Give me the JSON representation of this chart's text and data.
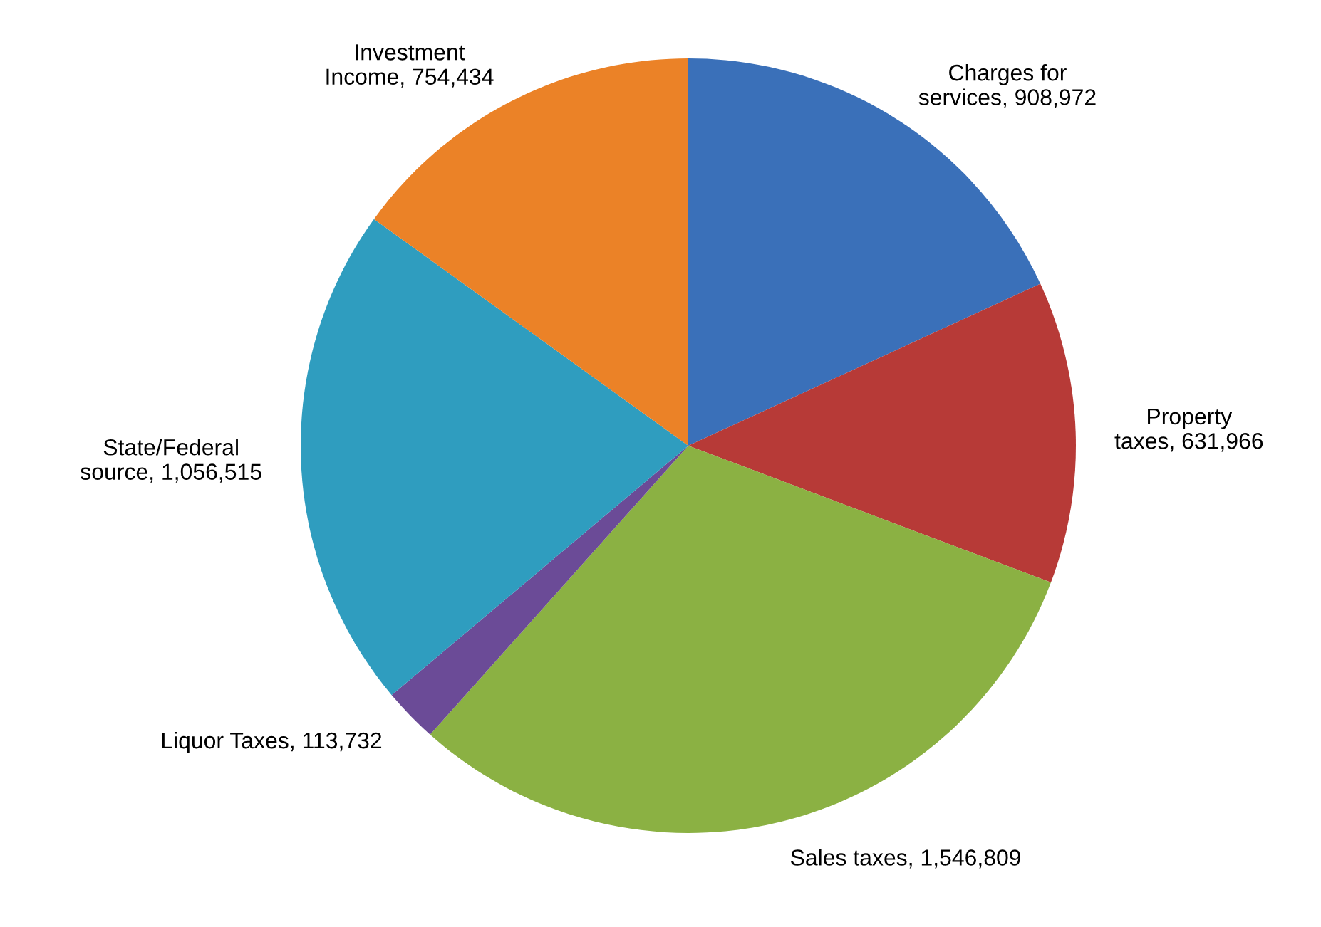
{
  "chart_data": {
    "type": "pie",
    "categories": [
      "Charges for services",
      "Property taxes",
      "Sales taxes",
      "Liquor Taxes",
      "State/Federal source",
      "Investment Income"
    ],
    "values": [
      908972,
      631966,
      1546809,
      113732,
      1056515,
      754434
    ],
    "value_labels": [
      "908,972",
      "631,966",
      "1,546,809",
      "113,732",
      "1,056,515",
      "754,434"
    ],
    "colors": [
      "#3a70b9",
      "#b73a37",
      "#8bb143",
      "#6b4b97",
      "#2f9dbf",
      "#eb8227"
    ]
  }
}
